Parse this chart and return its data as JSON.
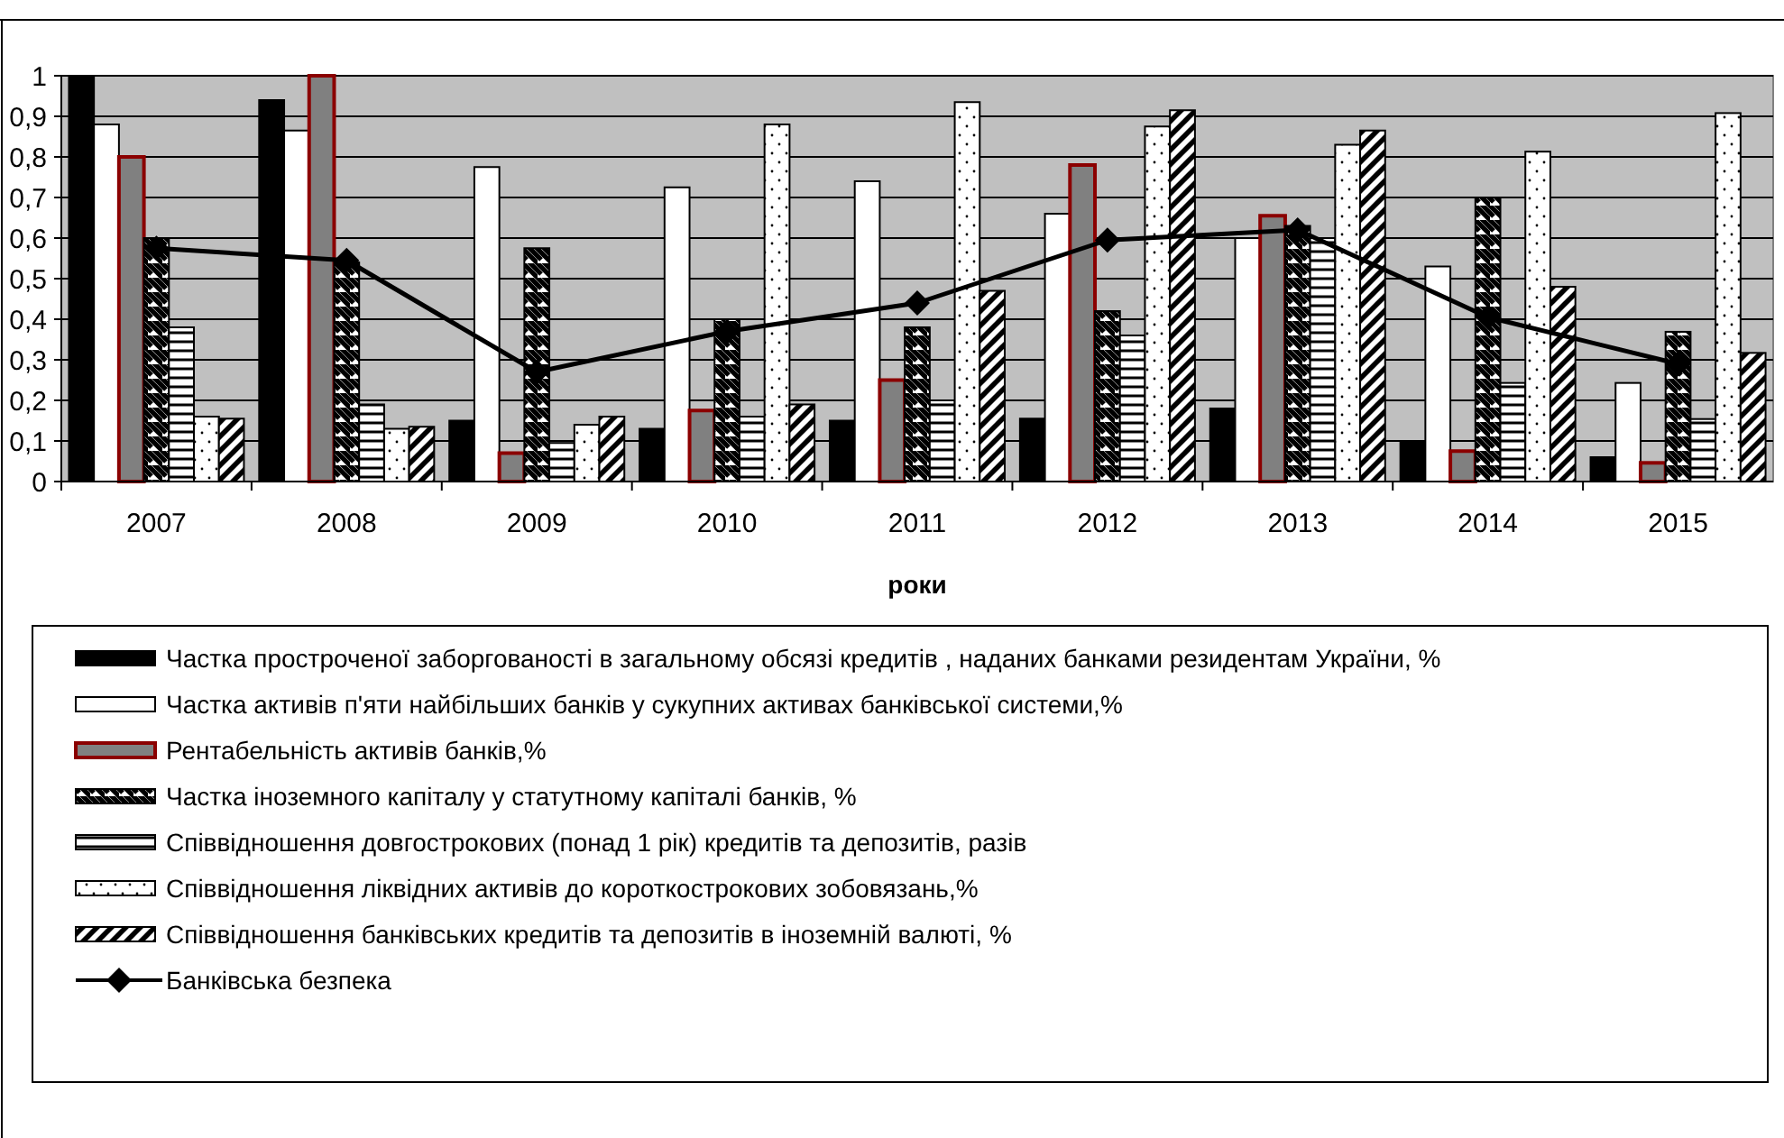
{
  "chart_data": {
    "type": "bar",
    "xlabel": "роки",
    "categories": [
      "2007",
      "2008",
      "2009",
      "2010",
      "2011",
      "2012",
      "2013",
      "2014",
      "2015"
    ],
    "ylim": [
      0,
      1
    ],
    "yticks": [
      0,
      {
        "value": 0.1,
        "label": "0,1"
      },
      {
        "value": 0.2,
        "label": "0,2"
      },
      {
        "value": 0.3,
        "label": "0,3"
      },
      {
        "value": 0.4,
        "label": "0,4"
      },
      {
        "value": 0.5,
        "label": "0,5"
      },
      {
        "value": 0.6,
        "label": "0,6"
      },
      {
        "value": 0.7,
        "label": "0,7"
      },
      {
        "value": 0.8,
        "label": "0,8"
      },
      {
        "value": 0.9,
        "label": "0,9"
      },
      1
    ],
    "grid": "y",
    "legend": "bottom",
    "series": [
      {
        "name": "Частка простроченої заборгованості в загальному обсязі кредитів , наданих банками резидентам України, %",
        "color": "#000000",
        "values": [
          1.0,
          0.94,
          0.15,
          0.13,
          0.15,
          0.155,
          0.18,
          0.1,
          0.06
        ]
      },
      {
        "name": "Частка активів п'яти найбільших банків у сукупних активах банківської системи,%",
        "color": "#ffffff",
        "values": [
          0.88,
          0.865,
          0.775,
          0.725,
          0.74,
          0.66,
          0.6,
          0.53,
          0.243
        ]
      },
      {
        "name": "Рентабельність активів банків,%",
        "color": "#808080",
        "values": [
          0.8,
          1.0,
          0.07,
          0.175,
          0.25,
          0.78,
          0.655,
          0.075,
          0.046
        ]
      },
      {
        "name": "Частка іноземного капіталу у статутному капіталі банків, %",
        "color": "#000000",
        "values": [
          0.6,
          0.54,
          0.575,
          0.4,
          0.38,
          0.42,
          0.63,
          0.7,
          0.369
        ]
      },
      {
        "name": "Співвідношення довгострокових (понад 1 рік) кредитів та депозитів, разів",
        "color": "#000000",
        "values": [
          0.38,
          0.19,
          0.095,
          0.16,
          0.2,
          0.36,
          0.6,
          0.243,
          0.154
        ]
      },
      {
        "name": "Співвідношення ліквідних активів до короткострокових зобовязань,%",
        "color": "#000000",
        "values": [
          0.16,
          0.13,
          0.14,
          0.88,
          0.935,
          0.875,
          0.83,
          0.813,
          0.908
        ]
      },
      {
        "name": "Співвідношення банківських кредитів та депозитів в іноземній валюті, %",
        "color": "#000000",
        "values": [
          0.155,
          0.135,
          0.16,
          0.19,
          0.47,
          0.915,
          0.865,
          0.48,
          0.317
        ]
      },
      {
        "name": "Банківська безпека",
        "type": "line",
        "color": "#000000",
        "marker": "diamond",
        "line_style": "solid",
        "values": [
          0.575,
          0.545,
          0.27,
          0.37,
          0.44,
          0.595,
          0.62,
          0.405,
          0.29
        ]
      }
    ]
  }
}
